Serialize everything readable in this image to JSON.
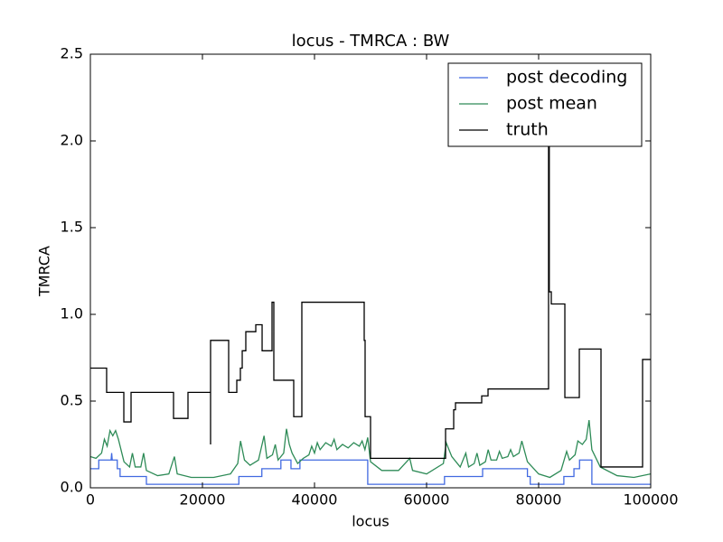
{
  "chart_data": {
    "type": "line",
    "title": "locus - TMRCA : BW",
    "x_label": "locus",
    "y_label": "TMRCA",
    "xlim": [
      0,
      100000
    ],
    "xticks": [
      0,
      20000,
      40000,
      60000,
      80000,
      100000
    ],
    "ylim": [
      0,
      2.5
    ],
    "yticks": [
      {
        "value": 0,
        "label": "0.0"
      },
      0.5,
      {
        "value": 1,
        "label": "1.0"
      },
      1.5,
      {
        "value": 2,
        "label": "2.0"
      },
      2.5
    ],
    "legend": "upper right",
    "series": [
      {
        "name": "post decoding",
        "color": "#4169e1",
        "x": [
          0,
          1500,
          1500,
          3700,
          3800,
          3900,
          4800,
          4800,
          5300,
          5300,
          10000,
          10000,
          26500,
          26500,
          30600,
          30600,
          34000,
          34000,
          35800,
          35800,
          37400,
          37400,
          49500,
          49500,
          63200,
          63200,
          70000,
          70000,
          78000,
          78000,
          78500,
          78500,
          84500,
          84500,
          86300,
          86300,
          87300,
          87300,
          89500,
          89500,
          100000
        ],
        "values": [
          0.11,
          0.11,
          0.16,
          0.16,
          0.2,
          0.16,
          0.16,
          0.11,
          0.11,
          0.065,
          0.065,
          0.02,
          0.02,
          0.065,
          0.065,
          0.11,
          0.11,
          0.16,
          0.16,
          0.11,
          0.11,
          0.16,
          0.16,
          0.02,
          0.02,
          0.065,
          0.065,
          0.11,
          0.11,
          0.065,
          0.065,
          0.02,
          0.02,
          0.065,
          0.065,
          0.11,
          0.11,
          0.16,
          0.16,
          0.02,
          0.02
        ]
      },
      {
        "name": "post mean",
        "color": "#2e8b57",
        "x": [
          0,
          1000,
          2000,
          2500,
          3000,
          3500,
          4000,
          4500,
          5000,
          6000,
          7000,
          7500,
          8000,
          9000,
          9500,
          10000,
          12000,
          14000,
          15000,
          15500,
          18000,
          22000,
          25000,
          26300,
          26800,
          27500,
          28500,
          30000,
          31000,
          31500,
          32500,
          33000,
          33500,
          34500,
          35000,
          35500,
          36000,
          37000,
          38000,
          39000,
          39500,
          40000,
          40500,
          41000,
          42000,
          43000,
          43500,
          44000,
          45000,
          46000,
          47000,
          48000,
          48500,
          49000,
          49500,
          50000,
          52000,
          55000,
          57000,
          57500,
          60000,
          63000,
          63500,
          64500,
          66000,
          67000,
          67500,
          68500,
          69000,
          69500,
          70500,
          71000,
          71500,
          72500,
          73000,
          73500,
          74500,
          75000,
          75500,
          76500,
          77000,
          78000,
          80000,
          82000,
          84000,
          85000,
          85500,
          86500,
          87000,
          87800,
          88500,
          89000,
          89500,
          91000,
          94000,
          97000,
          100000
        ],
        "values": [
          0.18,
          0.17,
          0.2,
          0.28,
          0.24,
          0.33,
          0.3,
          0.33,
          0.28,
          0.15,
          0.12,
          0.2,
          0.12,
          0.12,
          0.2,
          0.1,
          0.07,
          0.08,
          0.18,
          0.08,
          0.06,
          0.06,
          0.08,
          0.14,
          0.27,
          0.16,
          0.13,
          0.16,
          0.3,
          0.17,
          0.19,
          0.25,
          0.16,
          0.2,
          0.34,
          0.25,
          0.2,
          0.14,
          0.17,
          0.19,
          0.24,
          0.2,
          0.26,
          0.22,
          0.26,
          0.24,
          0.28,
          0.22,
          0.25,
          0.23,
          0.26,
          0.24,
          0.27,
          0.22,
          0.29,
          0.15,
          0.1,
          0.1,
          0.17,
          0.1,
          0.08,
          0.14,
          0.26,
          0.18,
          0.12,
          0.2,
          0.12,
          0.14,
          0.2,
          0.13,
          0.15,
          0.22,
          0.16,
          0.16,
          0.21,
          0.17,
          0.18,
          0.22,
          0.18,
          0.2,
          0.27,
          0.15,
          0.08,
          0.06,
          0.1,
          0.21,
          0.16,
          0.19,
          0.27,
          0.25,
          0.28,
          0.39,
          0.22,
          0.12,
          0.07,
          0.06,
          0.08
        ]
      },
      {
        "name": "truth",
        "color": "#000000",
        "x": [
          0,
          2900,
          2900,
          5970,
          5970,
          7260,
          7260,
          14840,
          14840,
          17420,
          17420,
          21450,
          21450,
          21450,
          24680,
          24680,
          26130,
          26130,
          26770,
          26770,
          27100,
          27100,
          27740,
          27740,
          29520,
          29520,
          30650,
          30650,
          32420,
          32420,
          32740,
          32740,
          36290,
          36290,
          37740,
          37740,
          48870,
          48870,
          49030,
          49030,
          50000,
          50000,
          63390,
          63390,
          64840,
          64840,
          65160,
          65160,
          69840,
          69840,
          70970,
          70970,
          81770,
          81770,
          81900,
          81900,
          82260,
          82260,
          84680,
          84680,
          87260,
          87260,
          91130,
          91130,
          98550,
          98550,
          100000
        ],
        "values": [
          0.69,
          0.69,
          0.55,
          0.55,
          0.38,
          0.38,
          0.55,
          0.55,
          0.4,
          0.4,
          0.55,
          0.55,
          0.25,
          0.85,
          0.85,
          0.55,
          0.55,
          0.62,
          0.62,
          0.69,
          0.69,
          0.79,
          0.79,
          0.9,
          0.9,
          0.94,
          0.94,
          0.79,
          0.79,
          1.07,
          1.07,
          0.62,
          0.62,
          0.41,
          0.41,
          1.07,
          1.07,
          0.85,
          0.85,
          0.41,
          0.41,
          0.17,
          0.17,
          0.34,
          0.34,
          0.45,
          0.45,
          0.49,
          0.49,
          0.53,
          0.53,
          0.57,
          0.57,
          2.0,
          2.0,
          1.13,
          1.13,
          1.06,
          1.06,
          0.52,
          0.52,
          0.8,
          0.8,
          0.12,
          0.12,
          0.74,
          0.74
        ]
      }
    ]
  }
}
